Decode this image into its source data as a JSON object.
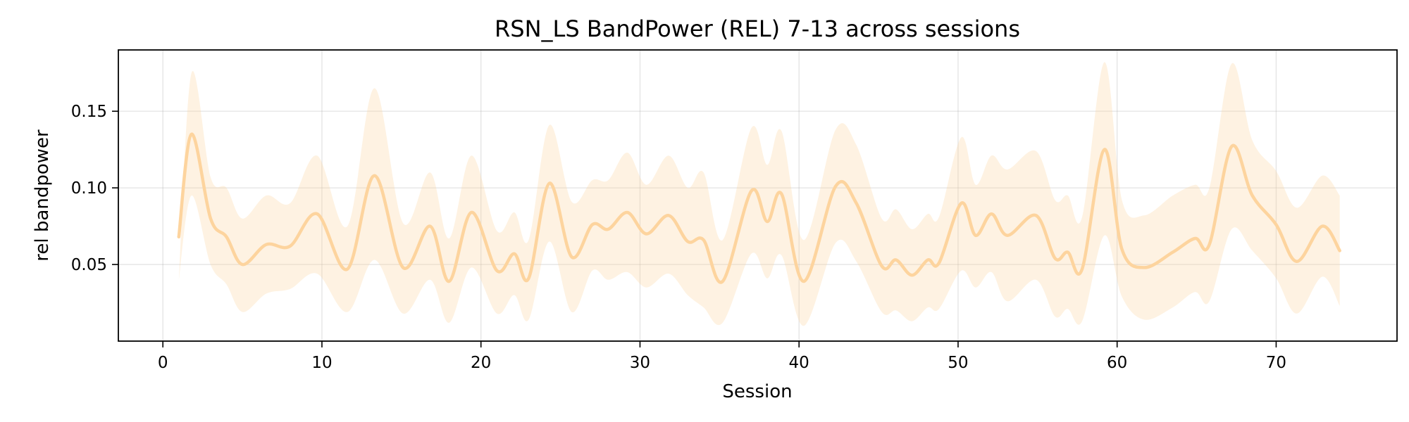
{
  "chart_data": {
    "type": "line",
    "title": "RSN_LS BandPower (REL) 7-13 across sessions",
    "xlabel": "Session",
    "ylabel": "rel bandpower",
    "xlim": [
      -2.8,
      77.6
    ],
    "ylim": [
      0.0,
      0.19
    ],
    "xticks": [
      0,
      10,
      20,
      30,
      40,
      50,
      60,
      70
    ],
    "yticks": [
      0.05,
      0.1,
      0.15
    ],
    "ytick_labels": [
      "0.05",
      "0.10",
      "0.15"
    ],
    "grid": true,
    "legend": "none",
    "colors": {
      "line": "#fdd49e",
      "band": "#fdd49e",
      "band_opacity": 0.3,
      "grid": "#b0b0b0"
    },
    "series": [
      {
        "x": [
          1,
          1.8,
          3,
          4,
          5,
          6.5,
          8,
          9.7,
          11.6,
          13.3,
          15.1,
          16.8,
          18,
          19.4,
          21,
          22.1,
          23,
          24.3,
          25.7,
          27,
          28,
          29.2,
          30.4,
          31.8,
          33,
          34,
          35.2,
          37,
          38,
          38.9,
          40.3,
          42.3,
          43.6,
          45.2,
          46.1,
          47.1,
          48.1,
          48.8,
          50.2,
          51.1,
          52.1,
          53.1,
          54.9,
          56.1,
          56.9,
          57.8,
          59.2,
          60.3,
          61.7,
          63.5,
          64.9,
          65.8,
          67.2,
          68.5,
          70,
          71.3,
          72.9,
          74
        ],
        "y": [
          0.068,
          0.135,
          0.08,
          0.068,
          0.05,
          0.063,
          0.062,
          0.083,
          0.047,
          0.108,
          0.048,
          0.075,
          0.039,
          0.084,
          0.046,
          0.057,
          0.041,
          0.103,
          0.055,
          0.076,
          0.073,
          0.084,
          0.07,
          0.082,
          0.065,
          0.066,
          0.039,
          0.098,
          0.078,
          0.096,
          0.039,
          0.101,
          0.09,
          0.049,
          0.053,
          0.043,
          0.053,
          0.051,
          0.09,
          0.069,
          0.083,
          0.069,
          0.082,
          0.054,
          0.058,
          0.047,
          0.125,
          0.06,
          0.048,
          0.058,
          0.067,
          0.063,
          0.127,
          0.095,
          0.076,
          0.052,
          0.075,
          0.059
        ],
        "upper": [
          0.04,
          0.175,
          0.107,
          0.1,
          0.08,
          0.095,
          0.09,
          0.121,
          0.075,
          0.165,
          0.077,
          0.11,
          0.067,
          0.121,
          0.072,
          0.084,
          0.066,
          0.141,
          0.091,
          0.105,
          0.105,
          0.123,
          0.102,
          0.121,
          0.1,
          0.11,
          0.066,
          0.139,
          0.115,
          0.137,
          0.066,
          0.138,
          0.128,
          0.08,
          0.086,
          0.073,
          0.083,
          0.081,
          0.133,
          0.102,
          0.121,
          0.112,
          0.124,
          0.092,
          0.095,
          0.081,
          0.182,
          0.092,
          0.082,
          0.095,
          0.102,
          0.1,
          0.181,
          0.131,
          0.111,
          0.087,
          0.108,
          0.095
        ],
        "lower": [
          0.04,
          0.095,
          0.05,
          0.037,
          0.019,
          0.031,
          0.034,
          0.044,
          0.019,
          0.053,
          0.018,
          0.04,
          0.012,
          0.048,
          0.018,
          0.03,
          0.014,
          0.065,
          0.019,
          0.046,
          0.04,
          0.045,
          0.035,
          0.044,
          0.03,
          0.022,
          0.012,
          0.057,
          0.041,
          0.056,
          0.01,
          0.064,
          0.052,
          0.019,
          0.02,
          0.013,
          0.022,
          0.021,
          0.046,
          0.035,
          0.045,
          0.026,
          0.04,
          0.016,
          0.021,
          0.013,
          0.069,
          0.029,
          0.014,
          0.022,
          0.032,
          0.026,
          0.073,
          0.059,
          0.041,
          0.018,
          0.042,
          0.023
        ]
      }
    ]
  }
}
